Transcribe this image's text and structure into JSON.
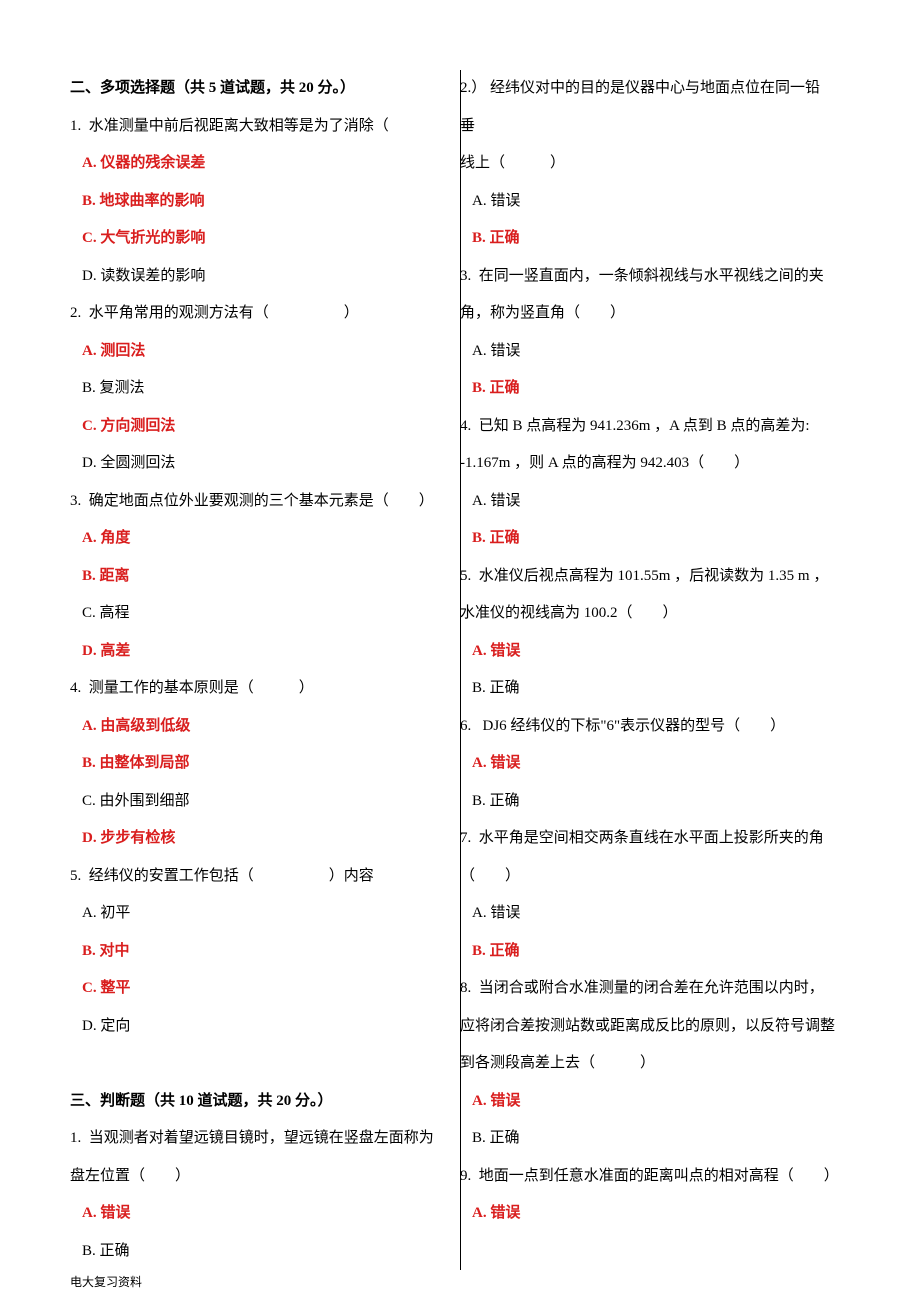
{
  "section2": {
    "title": "二、多项选择题（共 5 道试题，共 20 分。）",
    "questions": [
      {
        "num": "1.",
        "text": "水准测量中前后视距离大致相等是为了消除（",
        "options": [
          {
            "label": "A.",
            "text": "仪器的残余误差",
            "answer": true
          },
          {
            "label": "B.",
            "text": "地球曲率的影响",
            "answer": true
          },
          {
            "label": "C.",
            "text": "大气折光的影响",
            "answer": true
          },
          {
            "label": "D.",
            "text": "读数误差的影响",
            "answer": false
          }
        ]
      },
      {
        "num": "2.",
        "text": "水平角常用的观测方法有（　　　　　）",
        "options": [
          {
            "label": "A.",
            "text": "测回法",
            "answer": true
          },
          {
            "label": "B.",
            "text": "复测法",
            "answer": false
          },
          {
            "label": "C.",
            "text": "方向测回法",
            "answer": true
          },
          {
            "label": "D.",
            "text": "全圆测回法",
            "answer": false
          }
        ]
      },
      {
        "num": "3.",
        "text": "确定地面点位外业要观测的三个基本元素是（　　）",
        "options": [
          {
            "label": "A.",
            "text": "角度",
            "answer": true
          },
          {
            "label": "B.",
            "text": "距离",
            "answer": true
          },
          {
            "label": "C.",
            "text": "高程",
            "answer": false
          },
          {
            "label": "D.",
            "text": "高差",
            "answer": true
          }
        ]
      },
      {
        "num": "4.",
        "text": "测量工作的基本原则是（　　　）",
        "options": [
          {
            "label": "A.",
            "text": "由高级到低级",
            "answer": true
          },
          {
            "label": "B.",
            "text": "由整体到局部",
            "answer": true
          },
          {
            "label": "C.",
            "text": "由外围到细部",
            "answer": false
          },
          {
            "label": "D.",
            "text": "步步有检核",
            "answer": true
          }
        ]
      },
      {
        "num": "5.",
        "text": "经纬仪的安置工作包括（　　　　　）内容",
        "options": [
          {
            "label": "A.",
            "text": "初平",
            "answer": false
          },
          {
            "label": "B.",
            "text": "对中",
            "answer": true
          },
          {
            "label": "C.",
            "text": "整平",
            "answer": true
          },
          {
            "label": "D.",
            "text": "定向",
            "answer": false
          }
        ]
      }
    ]
  },
  "section3": {
    "title": "三、判断题（共 10 道试题，共 20 分。）",
    "questions": [
      {
        "num": "1.",
        "lines": [
          "当观测者对着望远镜目镜时，望远镜在竖盘左面称为",
          "盘左位置（　　）"
        ],
        "options": [
          {
            "label": "A.",
            "text": "错误",
            "answer": true
          },
          {
            "label": "B.",
            "text": "正确",
            "answer": false
          }
        ]
      },
      {
        "num": "2.）",
        "lines": [
          "经纬仪对中的目的是仪器中心与地面点位在同一铅垂",
          "线上（　　　）"
        ],
        "options": [
          {
            "label": "A.",
            "text": "错误",
            "answer": false
          },
          {
            "label": "B.",
            "text": "正确",
            "answer": true
          }
        ]
      },
      {
        "num": "3.",
        "lines": [
          "在同一竖直面内，一条倾斜视线与水平视线之间的夹",
          "角，称为竖直角（　　）"
        ],
        "options": [
          {
            "label": "A.",
            "text": "错误",
            "answer": false
          },
          {
            "label": "B.",
            "text": "正确",
            "answer": true
          }
        ]
      },
      {
        "num": "4.",
        "lines": [
          "已知 B 点高程为 941.236m ，A 点到 B 点的高差为:",
          "-1.167m ，则 A 点的高程为 942.403（　　）"
        ],
        "options": [
          {
            "label": "A.",
            "text": "错误",
            "answer": false
          },
          {
            "label": "B.",
            "text": "正确",
            "answer": true
          }
        ]
      },
      {
        "num": "5.",
        "lines": [
          "水准仪后视点高程为 101.55m ，后视读数为 1.35 m ，",
          "水准仪的视线高为 100.2（　　）"
        ],
        "options": [
          {
            "label": "A.",
            "text": "错误",
            "answer": true
          },
          {
            "label": "B.",
            "text": "正确",
            "answer": false
          }
        ]
      },
      {
        "num": "6.",
        "lines": [
          " DJ6 经纬仪的下标\"6\"表示仪器的型号（　　）"
        ],
        "options": [
          {
            "label": "A.",
            "text": "错误",
            "answer": true
          },
          {
            "label": "B.",
            "text": "正确",
            "answer": false
          }
        ]
      },
      {
        "num": "7.",
        "lines": [
          "水平角是空间相交两条直线在水平面上投影所夹的角",
          "（　　）"
        ],
        "options": [
          {
            "label": "A.",
            "text": "错误",
            "answer": false
          },
          {
            "label": "B.",
            "text": "正确",
            "answer": true
          }
        ]
      },
      {
        "num": "8.",
        "lines": [
          "当闭合或附合水准测量的闭合差在允许范围以内时，",
          "应将闭合差按测站数或距离成反比的原则，以反符号调整",
          "到各测段高差上去（　　　）"
        ],
        "options": [
          {
            "label": "A.",
            "text": "错误",
            "answer": true
          },
          {
            "label": "B.",
            "text": "正确",
            "answer": false
          }
        ]
      },
      {
        "num": "9.",
        "lines": [
          "地面一点到任意水准面的距离叫点的相对高程（　　）"
        ],
        "options": [
          {
            "label": "A.",
            "text": "错误",
            "answer": true
          }
        ]
      }
    ]
  },
  "footer": "电大复习资料"
}
